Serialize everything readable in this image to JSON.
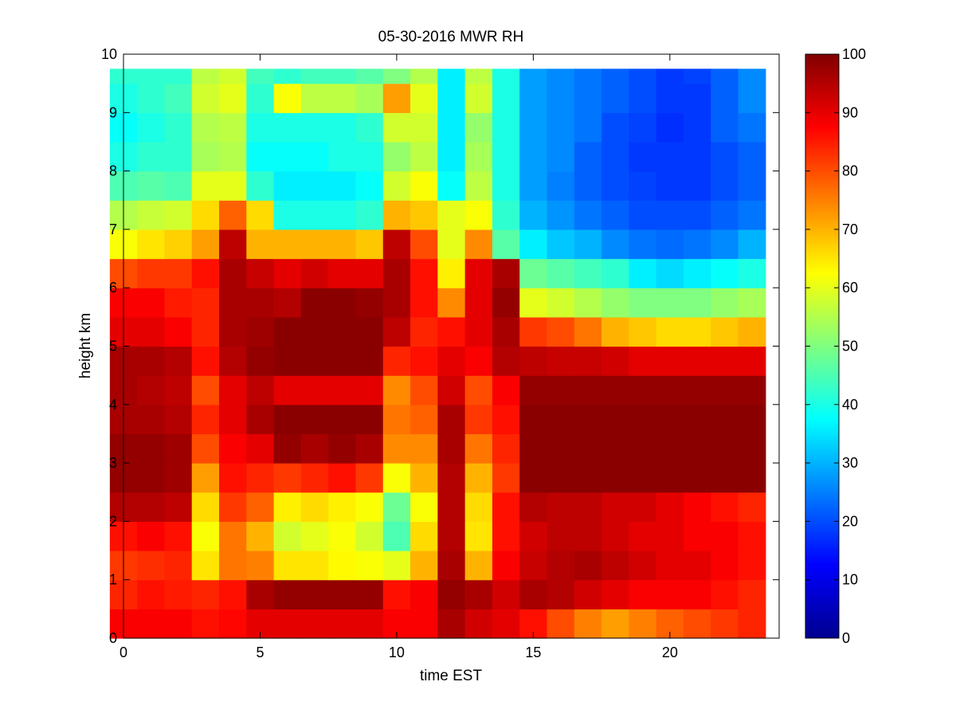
{
  "chart_data": {
    "type": "heatmap",
    "title": "05-30-2016 MWR RH",
    "xlabel": "time EST",
    "ylabel": "height km",
    "xlim": [
      0,
      24
    ],
    "ylim": [
      0,
      10
    ],
    "x_ticks": [
      0,
      5,
      10,
      15,
      20
    ],
    "y_ticks": [
      0,
      1,
      2,
      3,
      4,
      5,
      6,
      7,
      8,
      9,
      10
    ],
    "colorbar": {
      "colormap": "jet",
      "range": [
        0,
        100
      ],
      "ticks": [
        0,
        10,
        20,
        30,
        40,
        50,
        60,
        70,
        80,
        90,
        100
      ]
    },
    "x": [
      0.5,
      1.5,
      2.5,
      3.5,
      4.5,
      5.5,
      6.5,
      7.5,
      8.5,
      9.5,
      10.5,
      11.5,
      12.5,
      13.5,
      14.5,
      15.5,
      16.5,
      17.5,
      18.5,
      19.5,
      20.5,
      21.5,
      22.5,
      23.5
    ],
    "y": [
      0,
      0.5,
      1,
      1.5,
      2,
      2.5,
      3,
      3.5,
      4,
      4.5,
      5,
      5.5,
      6,
      6.5,
      7,
      7.5,
      8,
      8.5,
      9,
      9.5,
      9.75
    ],
    "z": [
      [
        88,
        88,
        88,
        86,
        87,
        90,
        90,
        90,
        90,
        90,
        88,
        88,
        96,
        92,
        90,
        86,
        80,
        75,
        72,
        75,
        78,
        80,
        82,
        84
      ],
      [
        84,
        86,
        85,
        84,
        86,
        96,
        98,
        98,
        98,
        98,
        86,
        88,
        98,
        96,
        92,
        96,
        95,
        92,
        90,
        88,
        88,
        88,
        86,
        84
      ],
      [
        82,
        83,
        84,
        65,
        76,
        75,
        65,
        65,
        63,
        62,
        60,
        70,
        96,
        70,
        88,
        93,
        95,
        96,
        94,
        92,
        90,
        90,
        88,
        86
      ],
      [
        86,
        88,
        86,
        62,
        76,
        70,
        58,
        60,
        62,
        58,
        45,
        66,
        95,
        65,
        86,
        92,
        94,
        94,
        92,
        90,
        90,
        88,
        88,
        86
      ],
      [
        95,
        95,
        94,
        66,
        82,
        78,
        64,
        66,
        64,
        62,
        48,
        62,
        95,
        66,
        86,
        95,
        94,
        94,
        92,
        92,
        90,
        88,
        86,
        84
      ],
      [
        98,
        98,
        97,
        72,
        86,
        84,
        82,
        84,
        86,
        82,
        62,
        70,
        95,
        70,
        82,
        99,
        99,
        99,
        99,
        99,
        99,
        99,
        99,
        99
      ],
      [
        98,
        98,
        97,
        80,
        88,
        90,
        98,
        96,
        98,
        96,
        74,
        74,
        96,
        76,
        84,
        99,
        99,
        99,
        99,
        99,
        99,
        99,
        99,
        99
      ],
      [
        96,
        96,
        95,
        84,
        90,
        96,
        99,
        99,
        99,
        99,
        76,
        78,
        96,
        82,
        86,
        99,
        99,
        99,
        99,
        99,
        99,
        99,
        99,
        99
      ],
      [
        96,
        95,
        94,
        80,
        90,
        94,
        90,
        90,
        90,
        90,
        74,
        80,
        92,
        80,
        88,
        98,
        98,
        98,
        98,
        98,
        98,
        98,
        98,
        98
      ],
      [
        96,
        96,
        95,
        86,
        95,
        98,
        99,
        99,
        99,
        99,
        84,
        86,
        90,
        88,
        95,
        94,
        93,
        93,
        92,
        90,
        90,
        90,
        90,
        90
      ],
      [
        90,
        90,
        88,
        84,
        96,
        97,
        99,
        99,
        99,
        99,
        94,
        84,
        86,
        90,
        96,
        82,
        80,
        76,
        70,
        68,
        66,
        66,
        68,
        70
      ],
      [
        88,
        88,
        85,
        84,
        96,
        96,
        95,
        99,
        99,
        98,
        96,
        86,
        74,
        90,
        98,
        60,
        58,
        55,
        52,
        50,
        50,
        50,
        52,
        54
      ],
      [
        80,
        82,
        82,
        86,
        96,
        93,
        90,
        92,
        90,
        90,
        96,
        86,
        64,
        90,
        96,
        48,
        46,
        44,
        42,
        36,
        34,
        36,
        38,
        40
      ],
      [
        62,
        65,
        67,
        72,
        94,
        70,
        70,
        70,
        70,
        68,
        94,
        80,
        60,
        74,
        46,
        36,
        32,
        30,
        26,
        24,
        23,
        24,
        26,
        30
      ],
      [
        55,
        57,
        58,
        66,
        78,
        66,
        40,
        40,
        40,
        42,
        70,
        68,
        60,
        62,
        42,
        30,
        27,
        24,
        22,
        20,
        20,
        20,
        22,
        24
      ],
      [
        45,
        46,
        45,
        60,
        60,
        42,
        36,
        36,
        36,
        38,
        58,
        62,
        38,
        56,
        40,
        28,
        25,
        22,
        20,
        19,
        18,
        18,
        20,
        22
      ],
      [
        40,
        42,
        42,
        54,
        55,
        38,
        38,
        38,
        40,
        40,
        52,
        56,
        36,
        54,
        40,
        28,
        26,
        22,
        20,
        18,
        18,
        18,
        20,
        22
      ],
      [
        38,
        40,
        42,
        55,
        56,
        40,
        40,
        40,
        40,
        42,
        58,
        58,
        36,
        52,
        40,
        28,
        26,
        24,
        20,
        19,
        17,
        18,
        22,
        24
      ],
      [
        40,
        42,
        44,
        58,
        60,
        42,
        62,
        56,
        56,
        54,
        72,
        60,
        36,
        58,
        40,
        28,
        26,
        24,
        22,
        20,
        18,
        18,
        22,
        26
      ],
      [
        42,
        42,
        42,
        56,
        58,
        44,
        42,
        44,
        44,
        46,
        50,
        55,
        36,
        56,
        40,
        28,
        26,
        24,
        22,
        20,
        18,
        19,
        22,
        26
      ],
      [
        44,
        44,
        44,
        56,
        58,
        46,
        40,
        42,
        42,
        44,
        50,
        54,
        36,
        54,
        40,
        28,
        26,
        24,
        22,
        20,
        20,
        20,
        24,
        26
      ]
    ]
  }
}
